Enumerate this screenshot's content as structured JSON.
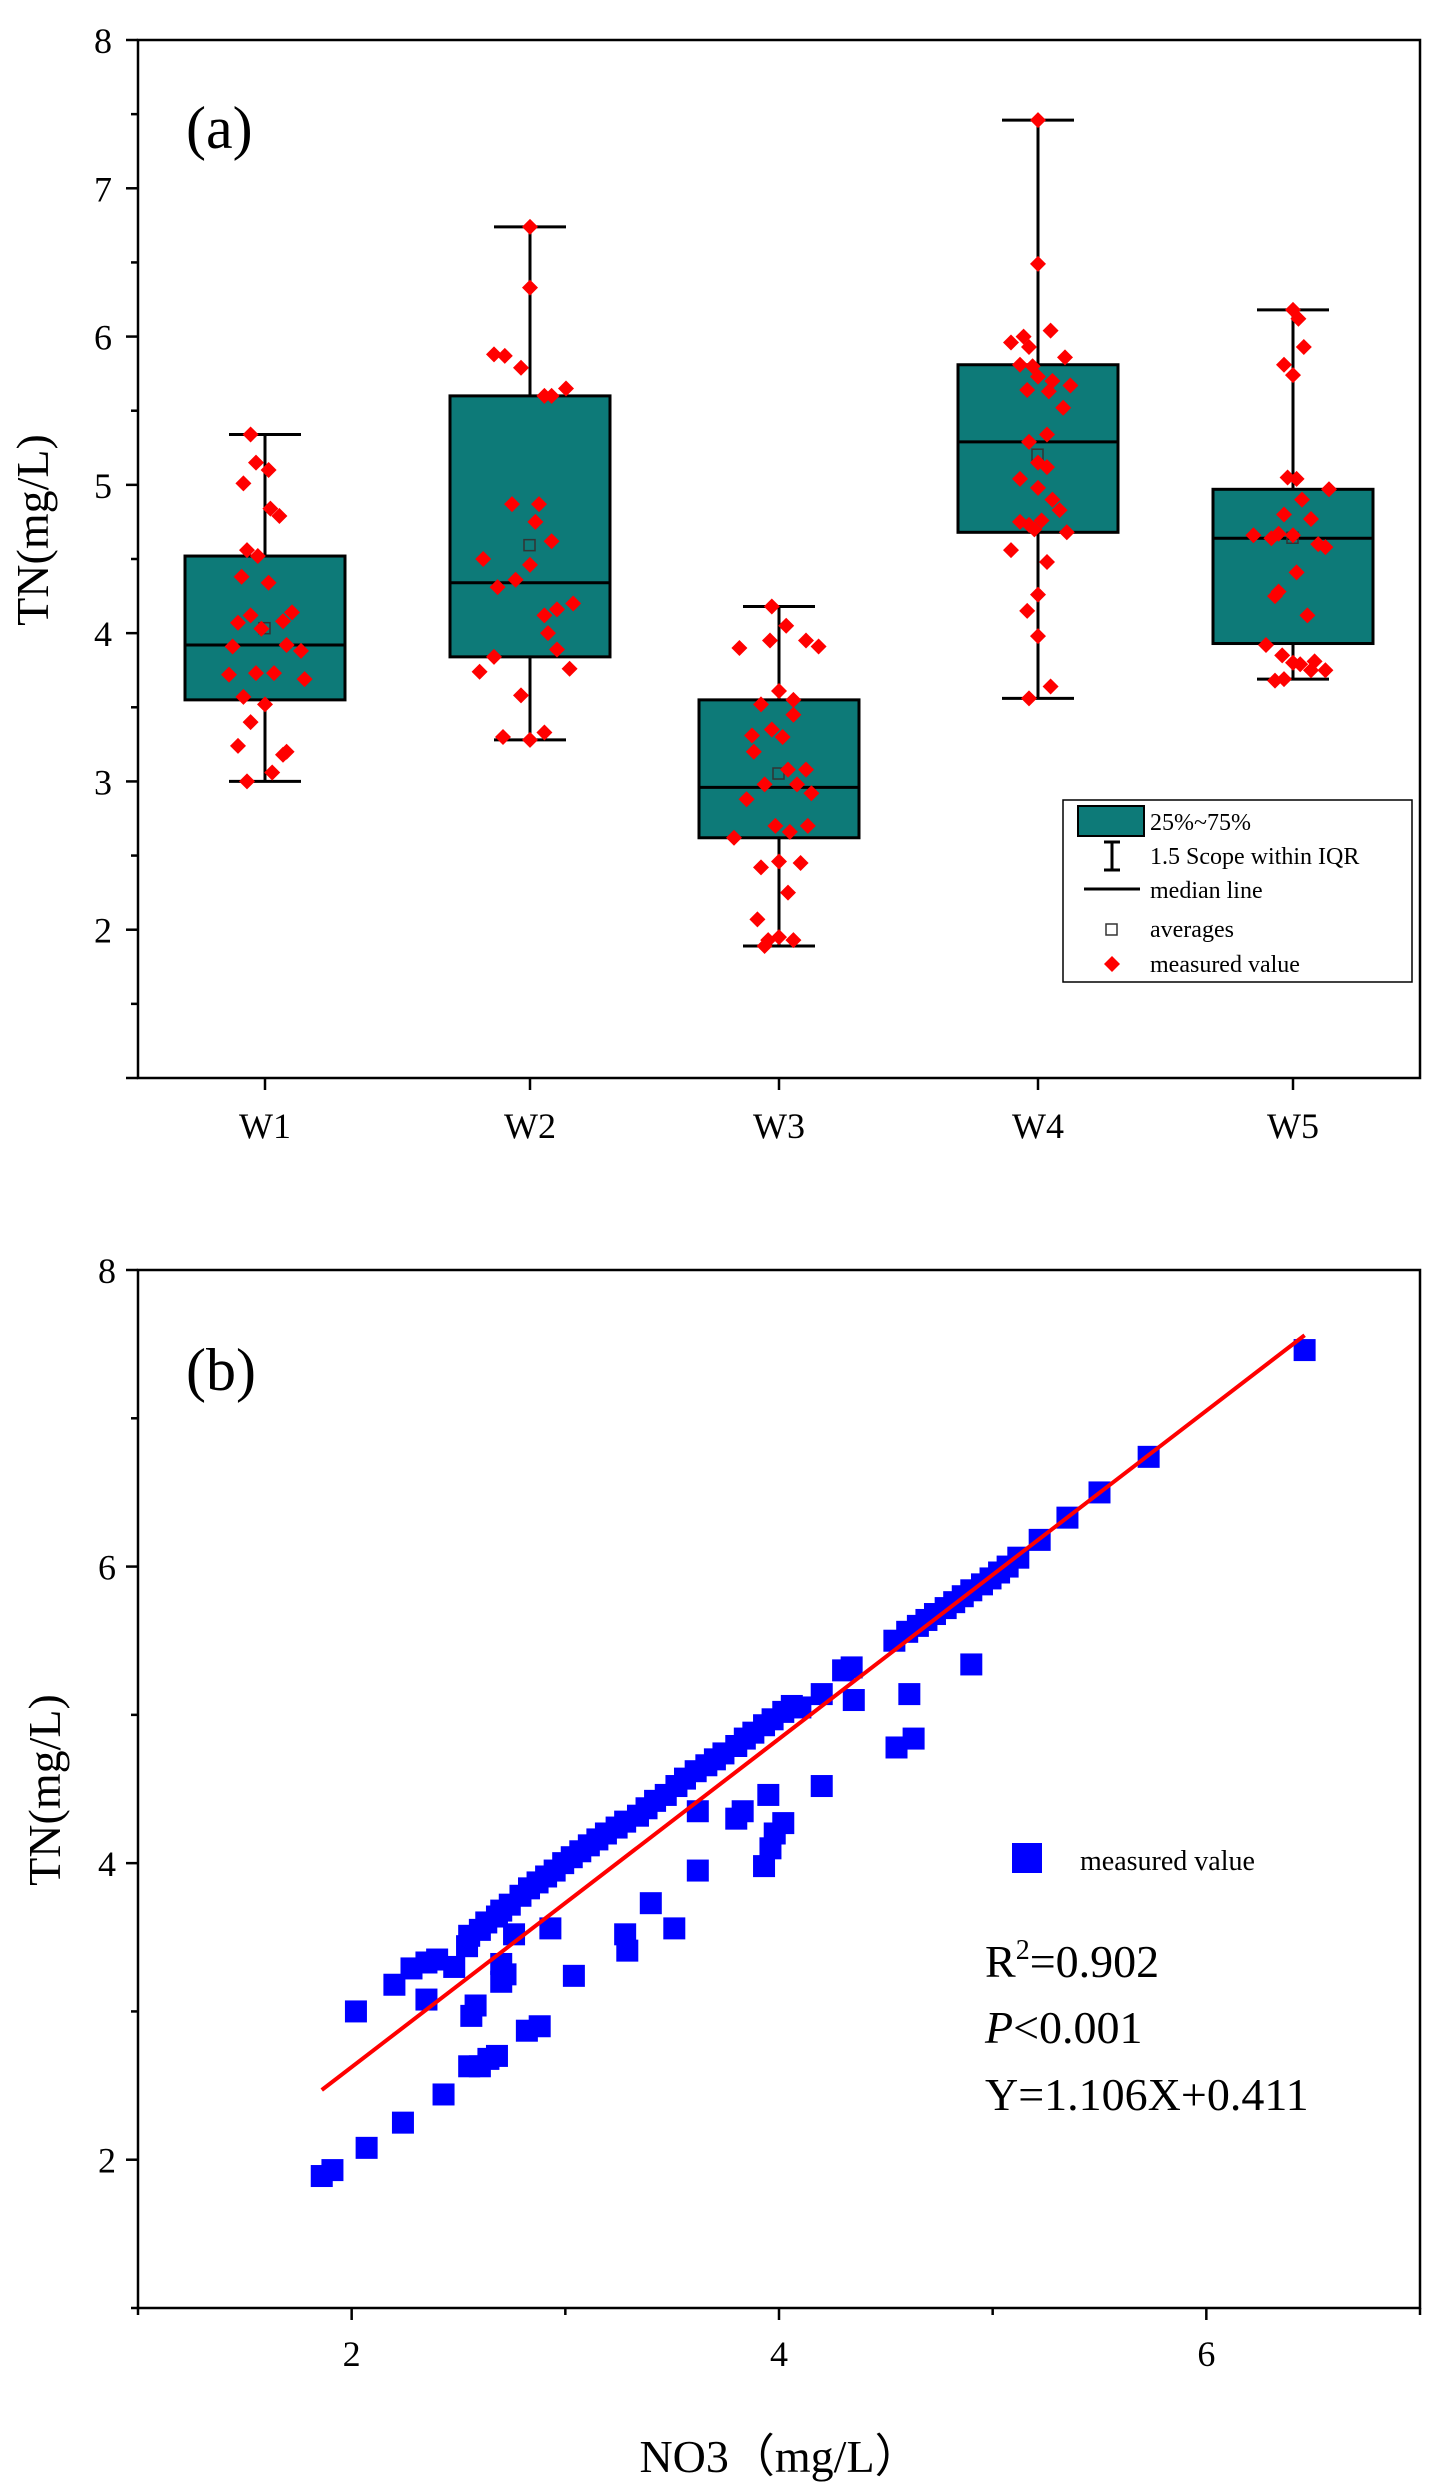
{
  "chart_data": [
    {
      "type": "box",
      "panel_label": "(a)",
      "ylabel": "TN(mg/L)",
      "ylim": [
        1,
        8
      ],
      "yticks": [
        1,
        2,
        3,
        4,
        5,
        6,
        7,
        8
      ],
      "ytick_labels": [
        "",
        "2",
        "3",
        "4",
        "5",
        "6",
        "7",
        "8"
      ],
      "categories": [
        "W1",
        "W2",
        "W3",
        "W4",
        "W5"
      ],
      "boxes": [
        {
          "q1": 3.55,
          "q3": 4.52,
          "median": 3.92,
          "mean": 4.03,
          "whisker_low": 3.0,
          "whisker_high": 5.34
        },
        {
          "q1": 3.84,
          "q3": 5.6,
          "median": 4.34,
          "mean": 4.59,
          "whisker_low": 3.28,
          "whisker_high": 6.74
        },
        {
          "q1": 2.62,
          "q3": 3.55,
          "median": 2.96,
          "mean": 3.05,
          "whisker_low": 1.89,
          "whisker_high": 4.18
        },
        {
          "q1": 4.68,
          "q3": 5.81,
          "median": 5.29,
          "mean": 5.2,
          "whisker_low": 3.56,
          "whisker_high": 7.46
        },
        {
          "q1": 3.93,
          "q3": 4.97,
          "median": 4.64,
          "mean": 4.64,
          "whisker_low": 3.69,
          "whisker_high": 6.18
        }
      ],
      "points": [
        [
          [
            -0.08,
            5.34
          ],
          [
            -0.05,
            5.15
          ],
          [
            0.02,
            5.1
          ],
          [
            -0.12,
            5.01
          ],
          [
            0.03,
            4.84
          ],
          [
            0.08,
            4.79
          ],
          [
            -0.1,
            4.56
          ],
          [
            -0.04,
            4.52
          ],
          [
            -0.13,
            4.38
          ],
          [
            0.02,
            4.34
          ],
          [
            0.15,
            4.14
          ],
          [
            -0.08,
            4.12
          ],
          [
            0.1,
            4.08
          ],
          [
            -0.15,
            4.07
          ],
          [
            -0.02,
            4.03
          ],
          [
            0.12,
            3.92
          ],
          [
            -0.18,
            3.91
          ],
          [
            0.2,
            3.88
          ],
          [
            -0.05,
            3.73
          ],
          [
            0.05,
            3.73
          ],
          [
            -0.2,
            3.72
          ],
          [
            0.22,
            3.69
          ],
          [
            -0.12,
            3.57
          ],
          [
            0.0,
            3.52
          ],
          [
            -0.08,
            3.4
          ],
          [
            -0.15,
            3.24
          ],
          [
            0.12,
            3.2
          ],
          [
            0.1,
            3.18
          ],
          [
            0.04,
            3.06
          ],
          [
            -0.1,
            3.0
          ]
        ],
        [
          [
            0.0,
            6.74
          ],
          [
            0.0,
            6.33
          ],
          [
            -0.2,
            5.88
          ],
          [
            -0.14,
            5.87
          ],
          [
            -0.05,
            5.79
          ],
          [
            0.08,
            5.6
          ],
          [
            0.12,
            5.6
          ],
          [
            0.2,
            5.65
          ],
          [
            0.05,
            4.87
          ],
          [
            -0.1,
            4.87
          ],
          [
            0.03,
            4.75
          ],
          [
            0.12,
            4.62
          ],
          [
            -0.26,
            4.5
          ],
          [
            0.0,
            4.46
          ],
          [
            -0.08,
            4.36
          ],
          [
            -0.18,
            4.31
          ],
          [
            0.24,
            4.2
          ],
          [
            0.15,
            4.16
          ],
          [
            0.08,
            4.12
          ],
          [
            0.1,
            4.0
          ],
          [
            0.15,
            3.89
          ],
          [
            -0.2,
            3.84
          ],
          [
            0.22,
            3.76
          ],
          [
            -0.28,
            3.74
          ],
          [
            -0.05,
            3.58
          ],
          [
            0.08,
            3.33
          ],
          [
            -0.15,
            3.3
          ],
          [
            0.0,
            3.28
          ]
        ],
        [
          [
            -0.04,
            4.18
          ],
          [
            0.04,
            4.05
          ],
          [
            0.15,
            3.95
          ],
          [
            0.22,
            3.91
          ],
          [
            -0.05,
            3.95
          ],
          [
            -0.22,
            3.9
          ],
          [
            0.0,
            3.61
          ],
          [
            0.08,
            3.55
          ],
          [
            -0.1,
            3.52
          ],
          [
            -0.15,
            3.31
          ],
          [
            0.08,
            3.45
          ],
          [
            -0.04,
            3.35
          ],
          [
            0.02,
            3.3
          ],
          [
            -0.14,
            3.2
          ],
          [
            0.05,
            3.08
          ],
          [
            0.15,
            3.08
          ],
          [
            -0.08,
            2.98
          ],
          [
            0.1,
            2.98
          ],
          [
            0.18,
            2.92
          ],
          [
            -0.18,
            2.88
          ],
          [
            -0.02,
            2.7
          ],
          [
            0.06,
            2.66
          ],
          [
            0.16,
            2.7
          ],
          [
            -0.25,
            2.62
          ],
          [
            0.0,
            2.46
          ],
          [
            -0.1,
            2.42
          ],
          [
            0.12,
            2.45
          ],
          [
            0.05,
            2.25
          ],
          [
            -0.12,
            2.07
          ],
          [
            0.0,
            1.95
          ],
          [
            -0.06,
            1.93
          ],
          [
            0.08,
            1.93
          ],
          [
            -0.08,
            1.89
          ]
        ],
        [
          [
            0.0,
            7.46
          ],
          [
            0.0,
            6.49
          ],
          [
            0.07,
            6.04
          ],
          [
            -0.15,
            5.96
          ],
          [
            -0.08,
            6.0
          ],
          [
            -0.05,
            5.93
          ],
          [
            0.15,
            5.86
          ],
          [
            -0.1,
            5.81
          ],
          [
            -0.03,
            5.8
          ],
          [
            0.0,
            5.73
          ],
          [
            0.08,
            5.7
          ],
          [
            0.18,
            5.67
          ],
          [
            0.14,
            5.52
          ],
          [
            -0.06,
            5.64
          ],
          [
            0.06,
            5.63
          ],
          [
            0.05,
            5.34
          ],
          [
            -0.05,
            5.29
          ],
          [
            0.0,
            5.15
          ],
          [
            0.05,
            5.12
          ],
          [
            -0.1,
            5.04
          ],
          [
            0.0,
            4.98
          ],
          [
            0.08,
            4.9
          ],
          [
            0.12,
            4.83
          ],
          [
            -0.1,
            4.75
          ],
          [
            -0.05,
            4.73
          ],
          [
            0.02,
            4.76
          ],
          [
            -0.02,
            4.7
          ],
          [
            0.16,
            4.68
          ],
          [
            -0.15,
            4.56
          ],
          [
            0.05,
            4.48
          ],
          [
            0.0,
            4.26
          ],
          [
            -0.06,
            4.15
          ],
          [
            0.0,
            3.98
          ],
          [
            0.07,
            3.64
          ],
          [
            -0.05,
            3.56
          ]
        ],
        [
          [
            0.0,
            6.18
          ],
          [
            0.03,
            6.12
          ],
          [
            0.06,
            5.93
          ],
          [
            -0.05,
            5.81
          ],
          [
            0.0,
            5.74
          ],
          [
            -0.03,
            5.05
          ],
          [
            0.02,
            5.04
          ],
          [
            0.2,
            4.97
          ],
          [
            0.05,
            4.9
          ],
          [
            -0.05,
            4.8
          ],
          [
            0.1,
            4.77
          ],
          [
            0.0,
            4.66
          ],
          [
            -0.22,
            4.66
          ],
          [
            -0.12,
            4.64
          ],
          [
            -0.08,
            4.67
          ],
          [
            0.14,
            4.6
          ],
          [
            0.18,
            4.58
          ],
          [
            0.02,
            4.41
          ],
          [
            -0.08,
            4.28
          ],
          [
            -0.1,
            4.25
          ],
          [
            0.08,
            4.12
          ],
          [
            -0.15,
            3.92
          ],
          [
            -0.06,
            3.85
          ],
          [
            0.0,
            3.8
          ],
          [
            0.04,
            3.79
          ],
          [
            0.12,
            3.81
          ],
          [
            0.18,
            3.75
          ],
          [
            -0.1,
            3.68
          ],
          [
            0.1,
            3.75
          ],
          [
            -0.05,
            3.69
          ]
        ]
      ],
      "legend": {
        "position": "lower-right",
        "entries": [
          "25%~75%",
          "1.5 Scope within IQR",
          "median line",
          "averages",
          "measured value"
        ]
      }
    },
    {
      "type": "scatter",
      "panel_label": "(b)",
      "xlabel": "NO3（mg/L）",
      "ylabel": "TN(mg/L)",
      "xlim": [
        1,
        7
      ],
      "ylim": [
        1,
        8
      ],
      "xticks": [
        2,
        4,
        6
      ],
      "yticks": [
        2,
        4,
        6,
        8
      ],
      "minor_xticks": [
        1,
        3,
        5,
        7
      ],
      "series": [
        {
          "name": "measured value",
          "points": [
            [
              1.86,
              1.89
            ],
            [
              1.91,
              1.93
            ],
            [
              2.07,
              2.08
            ],
            [
              2.24,
              2.25
            ],
            [
              2.43,
              2.44
            ],
            [
              2.55,
              2.63
            ],
            [
              2.6,
              2.63
            ],
            [
              2.64,
              2.68
            ],
            [
              2.68,
              2.7
            ],
            [
              2.82,
              2.87
            ],
            [
              2.88,
              2.9
            ],
            [
              2.02,
              3.0
            ],
            [
              2.2,
              3.18
            ],
            [
              2.35,
              3.08
            ],
            [
              2.56,
              2.97
            ],
            [
              2.58,
              3.04
            ],
            [
              2.7,
              3.2
            ],
            [
              2.72,
              3.25
            ],
            [
              2.7,
              3.32
            ],
            [
              2.76,
              3.52
            ],
            [
              2.93,
              3.56
            ],
            [
              3.04,
              3.24
            ],
            [
              3.29,
              3.41
            ],
            [
              3.28,
              3.52
            ],
            [
              3.51,
              3.56
            ],
            [
              3.4,
              3.73
            ],
            [
              3.62,
              3.95
            ],
            [
              3.62,
              4.35
            ],
            [
              3.8,
              4.3
            ],
            [
              3.83,
              4.35
            ],
            [
              3.93,
              3.98
            ],
            [
              3.96,
              4.1
            ],
            [
              3.98,
              4.2
            ],
            [
              4.02,
              4.27
            ],
            [
              3.95,
              4.46
            ],
            [
              4.2,
              4.52
            ],
            [
              4.35,
              5.1
            ],
            [
              4.55,
              4.78
            ],
            [
              4.63,
              4.84
            ],
            [
              4.9,
              5.34
            ],
            [
              4.61,
              5.14
            ],
            [
              4.1,
              5.05
            ],
            [
              4.2,
              5.14
            ],
            [
              4.3,
              5.3
            ],
            [
              4.34,
              5.32
            ],
            [
              2.28,
              3.29
            ],
            [
              2.35,
              3.33
            ],
            [
              2.4,
              3.35
            ],
            [
              2.48,
              3.3
            ],
            [
              2.54,
              3.44
            ],
            [
              2.55,
              3.51
            ],
            [
              2.6,
              3.55
            ],
            [
              2.63,
              3.6
            ],
            [
              2.68,
              3.64
            ],
            [
              2.7,
              3.68
            ],
            [
              2.74,
              3.72
            ],
            [
              2.79,
              3.78
            ],
            [
              2.83,
              3.83
            ],
            [
              2.87,
              3.87
            ],
            [
              2.91,
              3.91
            ],
            [
              2.95,
              3.95
            ],
            [
              2.99,
              4.0
            ],
            [
              3.03,
              4.04
            ],
            [
              3.07,
              4.08
            ],
            [
              3.11,
              4.12
            ],
            [
              3.15,
              4.16
            ],
            [
              3.19,
              4.2
            ],
            [
              3.24,
              4.24
            ],
            [
              3.28,
              4.28
            ],
            [
              3.34,
              4.32
            ],
            [
              3.38,
              4.37
            ],
            [
              3.42,
              4.42
            ],
            [
              3.47,
              4.46
            ],
            [
              3.52,
              4.52
            ],
            [
              3.56,
              4.57
            ],
            [
              3.61,
              4.62
            ],
            [
              3.66,
              4.66
            ],
            [
              3.7,
              4.7
            ],
            [
              3.74,
              4.74
            ],
            [
              3.8,
              4.79
            ],
            [
              3.84,
              4.84
            ],
            [
              3.88,
              4.88
            ],
            [
              3.93,
              4.93
            ],
            [
              3.97,
              4.97
            ],
            [
              4.02,
              5.02
            ],
            [
              4.06,
              5.06
            ],
            [
              4.54,
              5.5
            ],
            [
              4.6,
              5.56
            ],
            [
              4.65,
              5.6
            ],
            [
              4.69,
              5.64
            ],
            [
              4.73,
              5.68
            ],
            [
              4.78,
              5.72
            ],
            [
              4.82,
              5.76
            ],
            [
              4.86,
              5.8
            ],
            [
              4.9,
              5.84
            ],
            [
              4.95,
              5.88
            ],
            [
              4.99,
              5.92
            ],
            [
              5.03,
              5.96
            ],
            [
              5.07,
              6.0
            ],
            [
              5.12,
              6.06
            ],
            [
              5.22,
              6.18
            ],
            [
              5.35,
              6.33
            ],
            [
              5.5,
              6.5
            ],
            [
              5.73,
              6.74
            ],
            [
              6.46,
              7.46
            ]
          ]
        },
        {
          "name": "fit",
          "line": [
            [
              1.86,
              2.47
            ],
            [
              6.46,
              7.56
            ]
          ]
        }
      ],
      "legend": {
        "position": "right",
        "entries": [
          "measured value"
        ]
      },
      "annotations": {
        "r2_prefix": "R",
        "r2_sup": "2",
        "r2_value": "=0.902",
        "p_label": "P",
        "p_value": "<0.001",
        "equation": "Y=1.106X+0.411"
      }
    }
  ]
}
